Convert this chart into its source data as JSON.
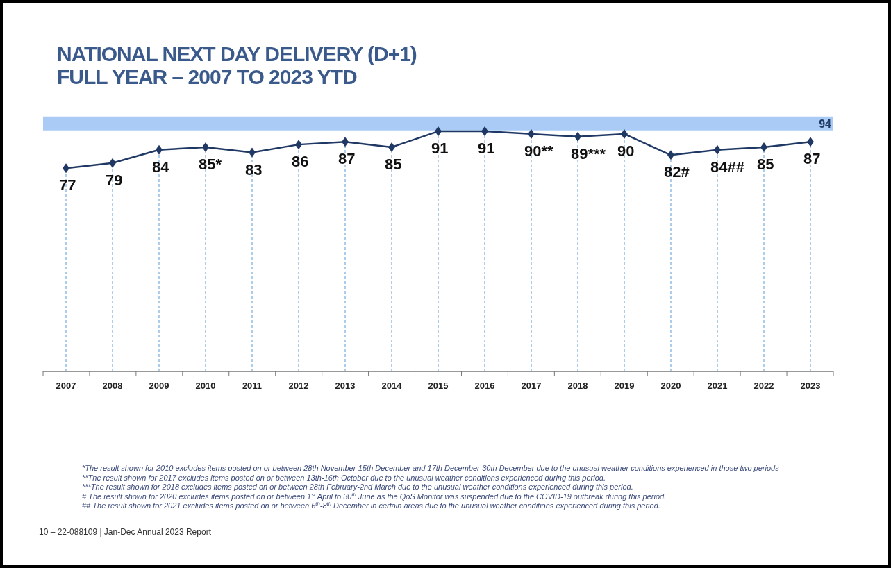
{
  "chart_data": {
    "type": "line",
    "title": "NATIONAL NEXT DAY DELIVERY (D+1)",
    "subtitle": "FULL YEAR – 2007 TO 2023 YTD",
    "categories": [
      "2007",
      "2008",
      "2009",
      "2010",
      "2011",
      "2012",
      "2013",
      "2014",
      "2015",
      "2016",
      "2017",
      "2018",
      "2019",
      "2020",
      "2021",
      "2022",
      "2023"
    ],
    "series": [
      {
        "color": "#1f3864",
        "values": [
          77,
          79,
          84,
          85,
          83,
          86,
          87,
          85,
          91,
          91,
          90,
          89,
          90,
          82,
          84,
          85,
          87
        ],
        "value_labels": [
          "77",
          "79",
          "84",
          "85*",
          "83",
          "86",
          "87",
          "85",
          "91",
          "91",
          "90**",
          "89***",
          "90",
          "82#",
          "84##",
          "85",
          "87"
        ]
      }
    ],
    "tick_labels": "x",
    "grid": "x",
    "marker": "diamond",
    "line_style": "solid",
    "ref_lines": [
      {
        "axis": "y",
        "value": 94,
        "label": "94",
        "color": "#a9cbf5"
      }
    ],
    "annotations": [
      "*The result shown for 2010 excludes items posted on or between 28th November-15th  December  and 17th December-30th  December  due to the unusual weather conditions experienced in those two periods",
      "**The result shown for 2017 excludes items posted on or between 13th-16th October due to the unusual weather conditions experienced during this period.",
      "***The result shown for 2018 excludes items posted on or between 28th February-2nd  March due to the unusual weather conditions experienced during this period.",
      "# The result shown for 2020 excludes items posted on or between 1$^{st}$ April to 30$^{th}$ June as the QoS Monitor was suspended due to the COVID-19 outbreak during this period.",
      "## The result shown for 2021 excludes items posted on or between 6$^{th}$-8$^{th}$ December  in certain areas due to the unusual weather conditions experienced during this period.",
      "10 – 22-088109 | Jan-Dec Annual 2023 Report"
    ]
  }
}
